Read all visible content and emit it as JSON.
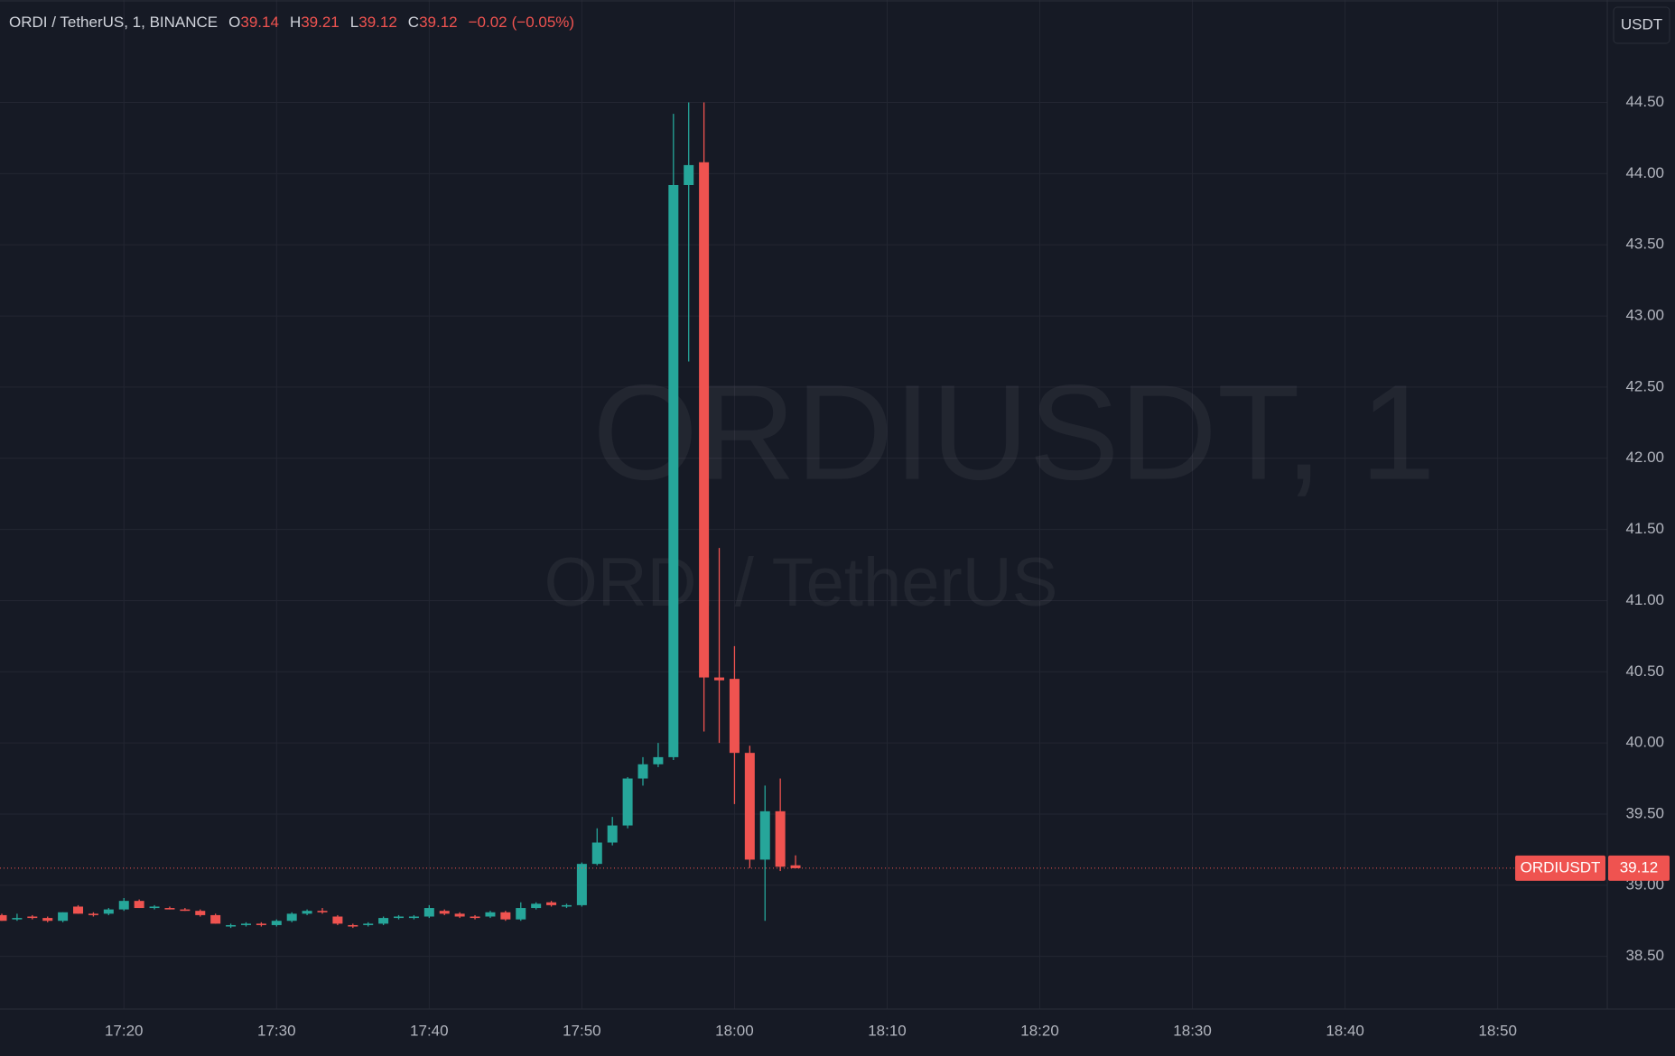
{
  "chart_data": {
    "type": "candlestick",
    "header": {
      "symbol": "ORDI / TetherUS, 1, BINANCE",
      "open_label": "O",
      "high_label": "H",
      "low_label": "L",
      "close_label": "C",
      "change": {
        "value": -0.02,
        "label": "−0.02"
      },
      "change_pct": {
        "value": -0.05,
        "label": "(−0.05%)"
      }
    },
    "watermark": "ORDIUSDT, 1",
    "watermark_subtitle": "ORDI / TetherUS",
    "currency": "USDT",
    "price_label": "ORDIUSDT",
    "up_color": "#26a69a",
    "down_color": "#ef5350",
    "grid": true,
    "x": [
      "17:12",
      "17:13",
      "17:14",
      "17:15",
      "17:16",
      "17:17",
      "17:18",
      "17:19",
      "17:20",
      "17:21",
      "17:22",
      "17:23",
      "17:24",
      "17:25",
      "17:26",
      "17:27",
      "17:28",
      "17:29",
      "17:30",
      "17:31",
      "17:32",
      "17:33",
      "17:34",
      "17:35",
      "17:36",
      "17:37",
      "17:38",
      "17:39",
      "17:40",
      "17:41",
      "17:42",
      "17:43",
      "17:44",
      "17:45",
      "17:46",
      "17:47",
      "17:48",
      "17:49",
      "17:50",
      "17:51",
      "17:52",
      "17:53",
      "17:54",
      "17:55",
      "17:56",
      "17:57",
      "17:58",
      "17:59",
      "18:00",
      "18:01",
      "18:02",
      "18:03",
      "18:04"
    ],
    "open": [
      38.79,
      38.76,
      38.78,
      38.77,
      38.75,
      38.85,
      38.8,
      38.8,
      38.83,
      38.89,
      38.84,
      38.84,
      38.83,
      38.82,
      38.79,
      38.71,
      38.72,
      38.73,
      38.72,
      38.75,
      38.8,
      38.82,
      38.78,
      38.72,
      38.72,
      38.73,
      38.77,
      38.77,
      38.78,
      38.82,
      38.8,
      38.78,
      38.78,
      38.81,
      38.76,
      38.84,
      38.88,
      38.85,
      38.86,
      39.15,
      39.3,
      39.42,
      39.75,
      39.85,
      39.9,
      43.92,
      44.08,
      40.46,
      40.45,
      39.93,
      39.18,
      39.52,
      39.14
    ],
    "high": [
      38.8,
      38.8,
      38.79,
      38.78,
      38.81,
      38.86,
      38.81,
      38.84,
      38.91,
      38.9,
      38.86,
      38.85,
      38.84,
      38.83,
      38.8,
      38.73,
      38.74,
      38.74,
      38.76,
      38.81,
      38.83,
      38.84,
      38.79,
      38.73,
      38.74,
      38.78,
      38.79,
      38.79,
      38.86,
      38.83,
      38.81,
      38.79,
      38.82,
      38.82,
      38.88,
      38.88,
      38.89,
      38.87,
      39.16,
      39.4,
      39.48,
      39.76,
      39.9,
      40.0,
      44.42,
      44.5,
      44.5,
      41.37,
      40.68,
      39.98,
      39.7,
      39.75,
      39.21
    ],
    "low": [
      38.75,
      38.75,
      38.76,
      38.74,
      38.74,
      38.8,
      38.78,
      38.79,
      38.82,
      38.84,
      38.83,
      38.83,
      38.82,
      38.78,
      38.73,
      38.7,
      38.71,
      38.71,
      38.71,
      38.74,
      38.79,
      38.8,
      38.72,
      38.7,
      38.71,
      38.72,
      38.76,
      38.76,
      38.77,
      38.79,
      38.77,
      38.76,
      38.77,
      38.75,
      38.75,
      38.83,
      38.85,
      38.84,
      38.85,
      39.14,
      39.28,
      39.4,
      39.7,
      39.83,
      39.88,
      42.68,
      40.08,
      40.0,
      39.57,
      39.12,
      38.75,
      39.1,
      39.12
    ],
    "close": [
      38.75,
      38.77,
      38.77,
      38.75,
      38.81,
      38.8,
      38.79,
      38.83,
      38.89,
      38.84,
      38.85,
      38.83,
      38.82,
      38.79,
      38.73,
      38.72,
      38.73,
      38.72,
      38.75,
      38.8,
      38.82,
      38.81,
      38.73,
      38.71,
      38.73,
      38.77,
      38.78,
      38.78,
      38.84,
      38.8,
      38.78,
      38.77,
      38.81,
      38.76,
      38.84,
      38.87,
      38.86,
      38.86,
      39.15,
      39.3,
      39.42,
      39.75,
      39.85,
      39.9,
      43.92,
      44.06,
      40.46,
      40.44,
      39.93,
      39.18,
      39.52,
      39.13,
      39.12
    ],
    "xlim": [
      "17:12",
      "18:57"
    ],
    "xticks": [
      "17:20",
      "17:30",
      "17:40",
      "17:50",
      "18:00",
      "18:10",
      "18:20",
      "18:30",
      "18:40",
      "18:50"
    ],
    "ylim": [
      38.13,
      45.22
    ],
    "yticks": [
      {
        "value": 38.5,
        "label": "38.50"
      },
      {
        "value": 39,
        "label": "39.00"
      },
      {
        "value": 39.5,
        "label": "39.50"
      },
      {
        "value": 40,
        "label": "40.00"
      },
      {
        "value": 40.5,
        "label": "40.50"
      },
      {
        "value": 41,
        "label": "41.00"
      },
      {
        "value": 41.5,
        "label": "41.50"
      },
      {
        "value": 42,
        "label": "42.00"
      },
      {
        "value": 42.5,
        "label": "42.50"
      },
      {
        "value": 43,
        "label": "43.00"
      },
      {
        "value": 43.5,
        "label": "43.50"
      },
      {
        "value": 44,
        "label": "44.00"
      },
      {
        "value": 44.5,
        "label": "44.50"
      }
    ]
  }
}
